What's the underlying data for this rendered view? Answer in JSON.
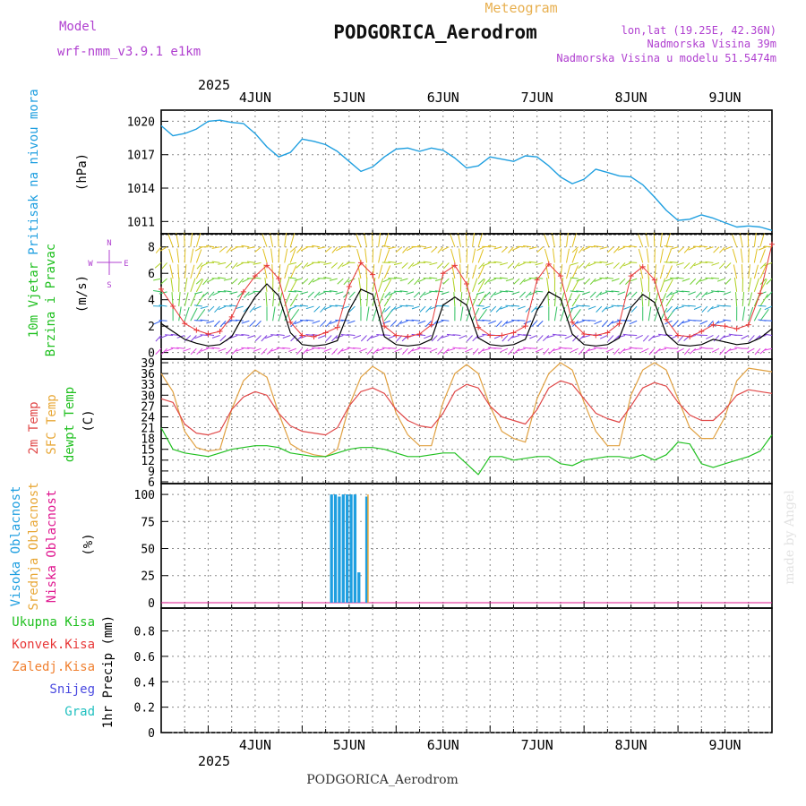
{
  "header": {
    "model_label": "Model",
    "model_name": "wrf-nmm_v3.9.1 e1km",
    "product": "Meteogram",
    "station": "PODGORICA_Aerodrom",
    "lonlat": "lon,lat (19.25E, 42.36N)",
    "elevation": "Nadmorska Visina 39m",
    "model_elevation": "Nadmorska Visina u modelu 51.5474m",
    "footer_station": "PODGORICA_Aerodrom",
    "credit": "made by Angel"
  },
  "time_axis": {
    "year": "2025",
    "days": [
      "4JUN",
      "5JUN",
      "6JUN",
      "7JUN",
      "8JUN",
      "9JUN"
    ],
    "range_hours": [
      -12,
      144
    ]
  },
  "colors": {
    "pressure": "#1f9fe0",
    "wind_speed": "#000000",
    "gust": "#e83838",
    "t2m": "#e04848",
    "sfc": "#e0a040",
    "dewpt": "#20c020",
    "cloud_high": "#1f9fe0",
    "cloud_mid": "#e8a838",
    "cloud_low": "#e01890",
    "rain_total": "#20c020",
    "rain_conv": "#e83838",
    "rain_frz": "#f08030",
    "snow": "#4a4ae0",
    "graupel": "#20c0c0",
    "label_purple": "#b040d0"
  },
  "chart_data": [
    {
      "type": "line",
      "id": "pressure",
      "ylabel_name": "Pritisak na nivou mora",
      "ylabel_unit": "(hPa)",
      "yticks": [
        "1020",
        "1017",
        "1014",
        "1011"
      ],
      "ylim": [
        1009.9,
        1021.0
      ],
      "x": [
        -12,
        -9,
        -6,
        -3,
        0,
        3,
        6,
        9,
        12,
        15,
        18,
        21,
        24,
        27,
        30,
        33,
        36,
        39,
        42,
        45,
        48,
        51,
        54,
        57,
        60,
        63,
        66,
        69,
        72,
        75,
        78,
        81,
        84,
        87,
        90,
        93,
        96,
        99,
        102,
        105,
        108,
        111,
        114,
        117,
        120,
        123,
        126,
        129,
        132,
        135,
        138,
        141,
        144
      ],
      "series": [
        {
          "values": [
            1019.6,
            1018.7,
            1018.9,
            1019.3,
            1020.0,
            1020.1,
            1019.9,
            1019.8,
            1018.9,
            1017.7,
            1016.8,
            1017.2,
            1018.4,
            1018.2,
            1017.9,
            1017.3,
            1016.4,
            1015.5,
            1015.9,
            1016.8,
            1017.5,
            1017.6,
            1017.3,
            1017.6,
            1017.4,
            1016.7,
            1015.8,
            1016.0,
            1016.8,
            1016.6,
            1016.4,
            1016.9,
            1016.8,
            1016.0,
            1015.0,
            1014.4,
            1014.8,
            1015.7,
            1015.4,
            1015.1,
            1015.0,
            1014.3,
            1013.2,
            1012.0,
            1011.1,
            1011.2,
            1011.6,
            1011.3,
            1010.9,
            1010.5,
            1010.6,
            1010.5,
            1010.2
          ]
        }
      ]
    },
    {
      "type": "line",
      "id": "wind",
      "ylabel_name": "10m Vjetar Brzina i Pravac",
      "ylabel_unit": "(m/s)",
      "compass": "N, E, S, W",
      "yticks": [
        "8",
        "6",
        "4",
        "2",
        "0"
      ],
      "ylim": [
        -0.5,
        9.0
      ],
      "x": [
        -12,
        -9,
        -6,
        -3,
        0,
        3,
        6,
        9,
        12,
        15,
        18,
        21,
        24,
        27,
        30,
        33,
        36,
        39,
        42,
        45,
        48,
        51,
        54,
        57,
        60,
        63,
        66,
        69,
        72,
        75,
        78,
        81,
        84,
        87,
        90,
        93,
        96,
        99,
        102,
        105,
        108,
        111,
        114,
        117,
        120,
        123,
        126,
        129,
        132,
        135,
        138,
        141,
        144
      ],
      "series": [
        {
          "name": "speed",
          "values": [
            2.2,
            1.6,
            1.0,
            0.7,
            0.5,
            0.6,
            1.2,
            2.8,
            4.2,
            5.2,
            4.3,
            1.5,
            0.6,
            0.5,
            0.6,
            0.9,
            3.2,
            4.8,
            4.4,
            1.2,
            0.6,
            0.5,
            0.6,
            1.0,
            3.6,
            4.2,
            3.6,
            1.1,
            0.6,
            0.5,
            0.6,
            1.0,
            3.2,
            4.6,
            4.1,
            1.4,
            0.6,
            0.5,
            0.6,
            1.1,
            3.4,
            4.4,
            3.8,
            1.4,
            0.6,
            0.5,
            0.6,
            1.0,
            0.8,
            0.6,
            0.7,
            1.1,
            1.8
          ]
        },
        {
          "name": "gust",
          "values": [
            4.8,
            3.5,
            2.2,
            1.7,
            1.4,
            1.6,
            2.7,
            4.6,
            5.8,
            6.6,
            5.6,
            2.3,
            1.3,
            1.2,
            1.5,
            1.9,
            5.0,
            6.8,
            5.9,
            2.0,
            1.3,
            1.2,
            1.4,
            2.1,
            6.0,
            6.6,
            5.2,
            1.9,
            1.3,
            1.3,
            1.5,
            2.0,
            5.5,
            6.7,
            5.8,
            2.3,
            1.4,
            1.3,
            1.5,
            2.2,
            5.8,
            6.5,
            5.5,
            2.5,
            1.3,
            1.2,
            1.6,
            2.1,
            2.0,
            1.8,
            2.1,
            4.5,
            8.2
          ]
        }
      ]
    },
    {
      "type": "line",
      "id": "temperature",
      "ylabel_name": "2m Temp / SFC Temp / dewpt Temp",
      "label_t2m": "2m Temp",
      "label_sfc": "SFC Temp",
      "label_dew": "dewpt Temp",
      "ylabel_unit": "(C)",
      "yticks": [
        "39",
        "36",
        "33",
        "30",
        "27",
        "24",
        "21",
        "18",
        "15",
        "12",
        "9",
        "6"
      ],
      "ylim": [
        5.5,
        40.0
      ],
      "x": [
        -12,
        -9,
        -6,
        -3,
        0,
        3,
        6,
        9,
        12,
        15,
        18,
        21,
        24,
        27,
        30,
        33,
        36,
        39,
        42,
        45,
        48,
        51,
        54,
        57,
        60,
        63,
        66,
        69,
        72,
        75,
        78,
        81,
        84,
        87,
        90,
        93,
        96,
        99,
        102,
        105,
        108,
        111,
        114,
        117,
        120,
        123,
        126,
        129,
        132,
        135,
        138,
        141,
        144
      ],
      "series": [
        {
          "name": "t2m",
          "values": [
            29,
            28,
            22,
            19.5,
            19,
            20,
            26,
            29.5,
            31,
            30,
            25,
            21.5,
            20,
            19.5,
            19,
            21,
            27,
            31,
            32,
            30.5,
            26,
            23,
            21.5,
            21,
            25,
            31,
            33,
            32,
            27,
            24,
            23,
            22,
            26,
            32,
            34,
            33,
            29,
            25,
            23.5,
            22.5,
            27,
            32,
            33.5,
            32.5,
            28,
            24.5,
            23,
            23,
            26,
            30,
            31.5,
            31,
            30.5
          ]
        },
        {
          "name": "sfc",
          "values": [
            36,
            31,
            20,
            15.5,
            14.5,
            15,
            26,
            34,
            37,
            35,
            25,
            16.5,
            14.5,
            13.5,
            13,
            15,
            27,
            35,
            38,
            36,
            25,
            19,
            16,
            16,
            28,
            36,
            38.5,
            36,
            27,
            20,
            18,
            17,
            29,
            36,
            39,
            37,
            28,
            20,
            16,
            16,
            30,
            37,
            39,
            37,
            29,
            21,
            18,
            18,
            24,
            34,
            37.5,
            37,
            36.5
          ]
        },
        {
          "name": "dewpt",
          "values": [
            21,
            15,
            14,
            13.5,
            13,
            14,
            15,
            15.5,
            16,
            16,
            15.5,
            14,
            13.5,
            13,
            13,
            14,
            15,
            15.5,
            15.5,
            15,
            14,
            13,
            13,
            13.5,
            14,
            14,
            11,
            8,
            13,
            13,
            12,
            12.5,
            13,
            13,
            11,
            10.5,
            12,
            12.5,
            13,
            13,
            12.5,
            13.5,
            12,
            13.5,
            17,
            16.5,
            11,
            10,
            11,
            12,
            13,
            14.5,
            19
          ]
        }
      ]
    },
    {
      "type": "bar",
      "id": "clouds",
      "label_high": "Visoka Oblacnost",
      "label_mid": "Srednja Oblacnost",
      "label_low": "Niska Oblacnost",
      "ylabel_unit": "(%)",
      "yticks": [
        "100",
        "75",
        "50",
        "25",
        "0"
      ],
      "ylim": [
        -5,
        110
      ],
      "x": [
        31.5,
        32.5,
        33.5,
        34.5,
        35.5,
        36.5,
        37.5,
        38.5,
        39.5,
        40.5
      ],
      "series": [
        {
          "name": "high",
          "values": [
            100,
            100,
            98,
            100,
            100,
            100,
            100,
            28,
            0,
            98
          ]
        },
        {
          "name": "mid",
          "values": [
            0,
            0,
            0,
            0,
            0,
            0,
            0,
            0,
            0,
            100
          ]
        },
        {
          "name": "low",
          "values": [
            0,
            0,
            0,
            0,
            0,
            0,
            0,
            0,
            0,
            0
          ]
        }
      ]
    },
    {
      "type": "bar",
      "id": "precip",
      "label_total": "Ukupna Kisa",
      "label_conv": "Konvek.Kisa",
      "label_frz": "Zaledj.Kisa",
      "label_snow": "Snijeg",
      "label_grad": "Grad",
      "ylabel_unit": "1hr Precip (mm)",
      "yticks": [
        "0.8",
        "0.6",
        "0.4",
        "0.2",
        "0"
      ],
      "ylim": [
        0,
        0.98
      ],
      "series": []
    }
  ]
}
